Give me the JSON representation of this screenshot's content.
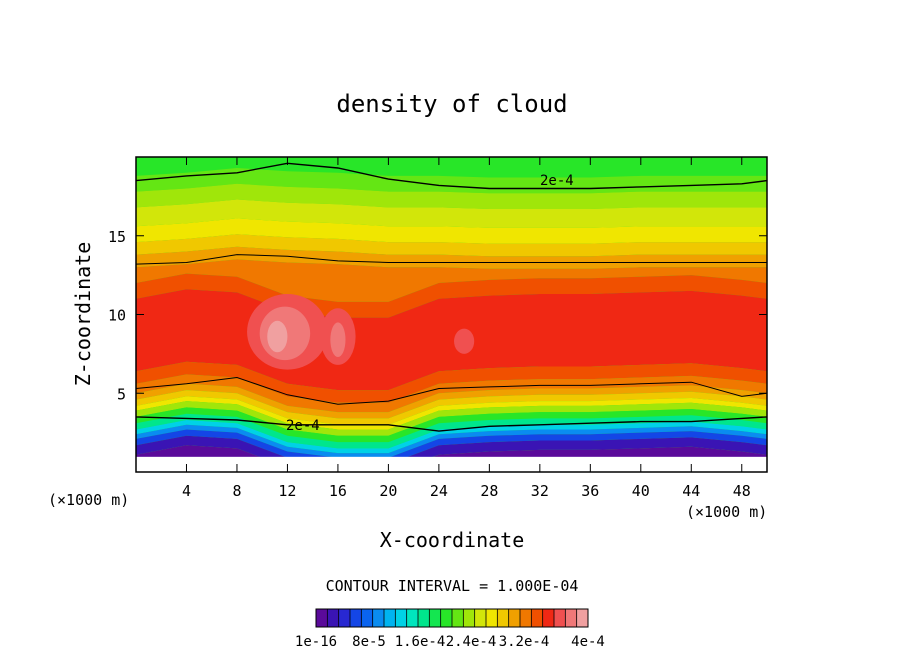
{
  "chart_data": {
    "type": "heatmap",
    "subtype": "filled-contour",
    "title": "density of cloud",
    "xlabel": "X-coordinate",
    "ylabel": "Z-coordinate",
    "x_unit_left": "(×1000 m)",
    "x_unit_right": "(×1000 m)",
    "xlim": [
      0,
      50
    ],
    "ylim": [
      0,
      20
    ],
    "x_ticks": [
      4,
      8,
      12,
      16,
      20,
      24,
      28,
      32,
      36,
      40,
      44,
      48
    ],
    "y_ticks": [
      5,
      10,
      15
    ],
    "contour_interval_text": "CONTOUR INTERVAL = 1.000E-04",
    "contour_labels": [
      "2e-4",
      "2e-4"
    ],
    "colorbar_labels": [
      "1e-16",
      "8e-5",
      "1.6e-4",
      "2.4e-4",
      "3.2e-4",
      "4e-4"
    ],
    "colorbar_levels": 24,
    "colorbar_colors": [
      "#5a0a9a",
      "#3a14b4",
      "#2828d2",
      "#1446e6",
      "#0a64f0",
      "#0a8cf0",
      "#00b4f0",
      "#00d2e6",
      "#00e6be",
      "#00e68c",
      "#14e650",
      "#28e628",
      "#64e614",
      "#a0e60a",
      "#d2e60a",
      "#f0e600",
      "#f0c800",
      "#f0a000",
      "#f07800",
      "#f05000",
      "#f02814",
      "#f05050",
      "#f07878",
      "#f0a0a0"
    ],
    "field_bands_x_in_1000m": [
      0,
      4,
      8,
      12,
      16,
      20,
      24,
      28,
      32,
      36,
      40,
      44,
      48,
      50
    ],
    "contour_2e-4_lower_z": [
      3.5,
      3.4,
      3.3,
      3.0,
      3.0,
      3.0,
      2.6,
      2.9,
      3.0,
      3.1,
      3.2,
      3.2,
      3.4,
      3.5
    ],
    "contour_2e-4_upper_z": [
      18.5,
      18.8,
      19.0,
      19.6,
      19.3,
      18.6,
      18.2,
      18.0,
      18.0,
      18.0,
      18.1,
      18.2,
      18.3,
      18.5
    ]
  }
}
